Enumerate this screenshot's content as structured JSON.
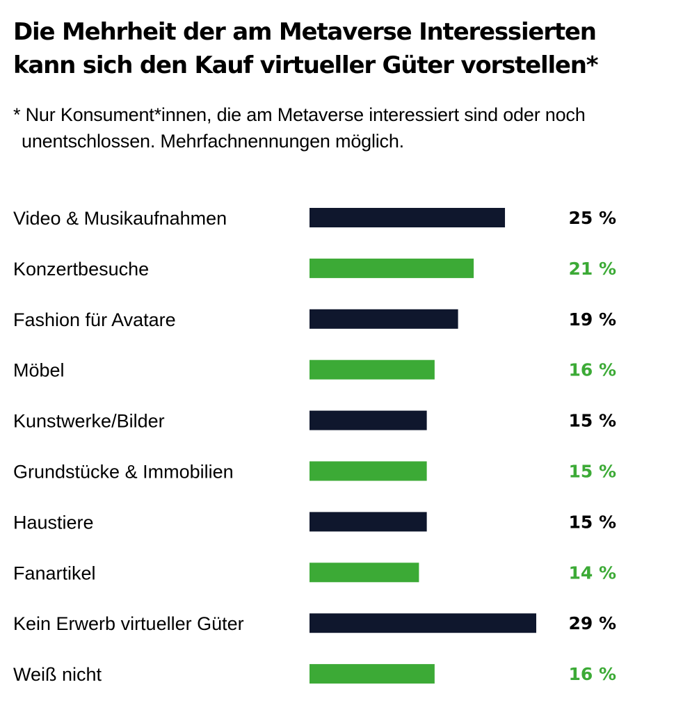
{
  "chart_data": {
    "type": "bar",
    "orientation": "horizontal",
    "title": "Die Mehrheit der am Metaverse Interessierten kann sich den Kauf virtueller Güter vorstellen*",
    "title_lines": [
      "Die Mehrheit der am Metaverse Interessierten",
      "kann sich den Kauf virtueller Güter vorstellen*"
    ],
    "subtitle_lines": [
      "* Nur Konsument*innen, die am Metaverse interessiert sind oder noch",
      "unentschlossen. Mehrfachnennungen möglich."
    ],
    "xlabel": "",
    "ylabel": "",
    "unit": "%",
    "xlim": [
      0,
      29
    ],
    "grid": false,
    "legend": "none",
    "categories": [
      "Video & Musikaufnahmen",
      "Konzertbesuche",
      "Fashion für Avatare",
      "Möbel",
      "Kunstwerke/Bilder",
      "Grundstücke & Immobilien",
      "Haustiere",
      "Fanartikel",
      "Kein Erwerb virtueller Güter",
      "Weiß nicht"
    ],
    "values": [
      25,
      21,
      19,
      16,
      15,
      15,
      15,
      14,
      29,
      16
    ],
    "value_labels": [
      "25 %",
      "21 %",
      "19 %",
      "16 %",
      "15 %",
      "15 %",
      "15 %",
      "14 %",
      "29 %",
      "16 %"
    ],
    "bar_colors": [
      "#0f172d",
      "#3caa36",
      "#0f172d",
      "#3caa36",
      "#0f172d",
      "#3caa36",
      "#0f172d",
      "#3caa36",
      "#0f172d",
      "#3caa36"
    ],
    "label_colors": [
      "#000000",
      "#3caa36",
      "#000000",
      "#3caa36",
      "#000000",
      "#3caa36",
      "#000000",
      "#3caa36",
      "#000000",
      "#3caa36"
    ]
  }
}
